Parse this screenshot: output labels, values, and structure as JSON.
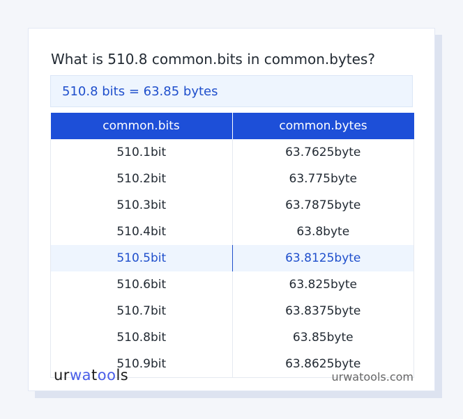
{
  "title": "What is 510.8 common.bits in common.bytes?",
  "result": "510.8 bits = 63.85 bytes",
  "table": {
    "headers": [
      "common.bits",
      "common.bytes"
    ],
    "rows": [
      [
        "510.1bit",
        "63.7625byte"
      ],
      [
        "510.2bit",
        "63.775byte"
      ],
      [
        "510.3bit",
        "63.7875byte"
      ],
      [
        "510.4bit",
        "63.8byte"
      ],
      [
        "510.5bit",
        "63.8125byte"
      ],
      [
        "510.6bit",
        "63.825byte"
      ],
      [
        "510.7bit",
        "63.8375byte"
      ],
      [
        "510.8bit",
        "63.85byte"
      ],
      [
        "510.9bit",
        "63.8625byte"
      ]
    ],
    "highlighted_row": 4
  },
  "footer": {
    "logo": "urwatools",
    "logo_parts": [
      "ur",
      "wa",
      "t",
      "oo",
      "ls"
    ],
    "site": "urwatools.com"
  },
  "colors": {
    "accent": "#1d4fd8",
    "highlight_bg": "#eef5fe"
  }
}
